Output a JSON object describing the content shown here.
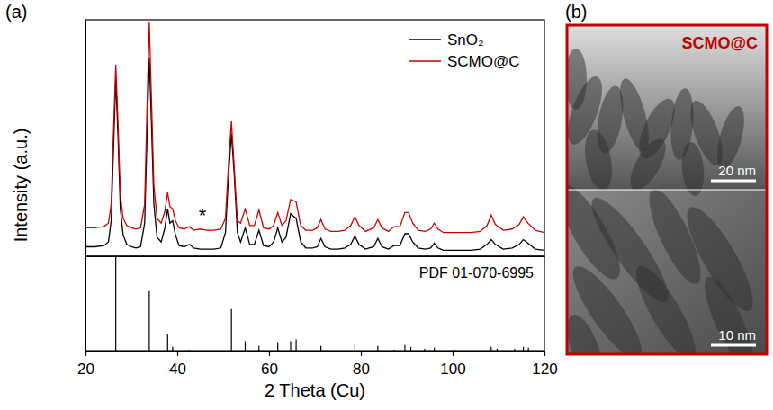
{
  "chart_data": [
    {
      "type": "line",
      "panel": "(a)",
      "y_label": "Intensity (a.u.)",
      "x": [
        20,
        22,
        24,
        25,
        25.6,
        26.1,
        26.6,
        27.1,
        27.6,
        28.2,
        29,
        30,
        31,
        32,
        32.9,
        33.4,
        33.9,
        34.4,
        34.9,
        35.6,
        36.5,
        37.3,
        37.9,
        38.4,
        39.0,
        39.6,
        40.4,
        41.5,
        42.6,
        43.6,
        45,
        46.5,
        48,
        49.5,
        50.5,
        51.2,
        51.8,
        52.4,
        53.1,
        53.8,
        54.8,
        55.8,
        56.8,
        57.8,
        58.8,
        60,
        61.0,
        61.9,
        62.8,
        63.7,
        64.7,
        65.9,
        66.9,
        68,
        69.5,
        70.5,
        71.3,
        72.2,
        73.5,
        75,
        76.5,
        77.8,
        78.7,
        79.6,
        81,
        82.8,
        83.7,
        84.6,
        86,
        87.2,
        88.5,
        89.6,
        90.4,
        91.3,
        92.5,
        94,
        95.2,
        96.0,
        96.8,
        98,
        100,
        102,
        104,
        106,
        107.5,
        108.4,
        109.3,
        111,
        113,
        114.5,
        115.4,
        116.4,
        118,
        120
      ],
      "series": [
        {
          "name": "SnO₂",
          "color": "#000000",
          "values": [
            4,
            4,
            4.5,
            6,
            15,
            45,
            75,
            50,
            20,
            9,
            5,
            4,
            3.5,
            4,
            14,
            50,
            84,
            55,
            22,
            8,
            6,
            12,
            20,
            14,
            15,
            9,
            4.5,
            4,
            5,
            3.5,
            3,
            3,
            3,
            3.5,
            10,
            35,
            52,
            35,
            10,
            6,
            12,
            5,
            5,
            11,
            4.5,
            4,
            6,
            12,
            6,
            8,
            18,
            16,
            6,
            3.5,
            3.5,
            4,
            7.5,
            4,
            3,
            3,
            3.5,
            5,
            8.5,
            5,
            3,
            4,
            7.5,
            4,
            3,
            4.5,
            4.5,
            9.5,
            9.5,
            6,
            3.5,
            3,
            3.5,
            5.5,
            3.5,
            2.5,
            2.5,
            2.5,
            2.5,
            3,
            5,
            7,
            5,
            3,
            3.5,
            5,
            7,
            5.5,
            3,
            2.5
          ]
        },
        {
          "name": "SCMO@C",
          "color": "#cc0000",
          "values": [
            12,
            12,
            12.5,
            14,
            22,
            52,
            81,
            56,
            26,
            16,
            13,
            12,
            11.5,
            12,
            22,
            62,
            99,
            65,
            30,
            16,
            14,
            19,
            27,
            21,
            20,
            15,
            12,
            11.5,
            12.5,
            11,
            11.5,
            11,
            11,
            11.5,
            16,
            40,
            57,
            38,
            15,
            14,
            20,
            13,
            13,
            19.6,
            12,
            11.5,
            13,
            18.5,
            13,
            15,
            24,
            23,
            13,
            11,
            11,
            12,
            15.5,
            11.5,
            10.5,
            10.5,
            11,
            13,
            16.7,
            13,
            10.5,
            12,
            15.5,
            12,
            10.5,
            12.5,
            12.5,
            18.5,
            18.5,
            14,
            11,
            10.5,
            11.5,
            14,
            11.5,
            10,
            10,
            10,
            10,
            10.5,
            13,
            17.4,
            13.5,
            11,
            11.5,
            13.5,
            16.7,
            14,
            11,
            10
          ]
        }
      ],
      "xlim": [
        20,
        120
      ],
      "ylim": [
        0,
        100
      ],
      "tick_labels": false,
      "legend": "upper right",
      "annotations": [
        {
          "text": "*",
          "x": 45.5
        }
      ]
    },
    {
      "type": "bar",
      "x": [
        26.6,
        33.9,
        37.9,
        39.0,
        42.6,
        51.8,
        54.8,
        57.8,
        61.9,
        64.7,
        65.9,
        71.3,
        78.7,
        83.7,
        87.2,
        89.6,
        90.9,
        93.9,
        96.0,
        100.3,
        108.4,
        109.7,
        113.5,
        115.4,
        116.5
      ],
      "values": [
        100,
        63,
        18,
        4,
        1,
        44,
        10,
        5,
        9,
        10,
        12,
        5,
        7,
        5,
        1,
        6,
        4,
        2,
        3,
        2,
        4,
        2,
        2,
        4,
        3
      ],
      "color": "#000000",
      "xlim": [
        20,
        120
      ],
      "ylim": [
        0,
        100
      ],
      "xticks": [
        20,
        40,
        60,
        80,
        100,
        120
      ],
      "x_label": "2 Theta (Cu)",
      "tick_labels": "x",
      "annotations": [
        {
          "text": "PDF 01-070-6995"
        }
      ]
    }
  ],
  "image_panel": {
    "panel": "(b)",
    "title": "SCMO@C",
    "scale_bars": [
      "20 nm",
      "10 nm"
    ]
  }
}
